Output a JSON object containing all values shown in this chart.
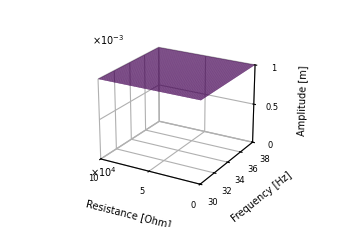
{
  "freq_min": 30,
  "freq_max": 38,
  "freq_steps": 100,
  "res_min": 0,
  "res_max": 100000,
  "res_steps": 60,
  "freq_ticks": [
    30,
    32,
    34,
    36,
    38
  ],
  "res_tick_labels": [
    "0",
    "5",
    "10"
  ],
  "z_tick_labels": [
    "0",
    "0.5",
    "1"
  ],
  "zlabel": "Amplitude [m]",
  "xlabel": "Frequency [Hz]",
  "ylabel": "Resistance [Ohm]",
  "colormap": "viridis",
  "elev": 22,
  "azim": -60
}
